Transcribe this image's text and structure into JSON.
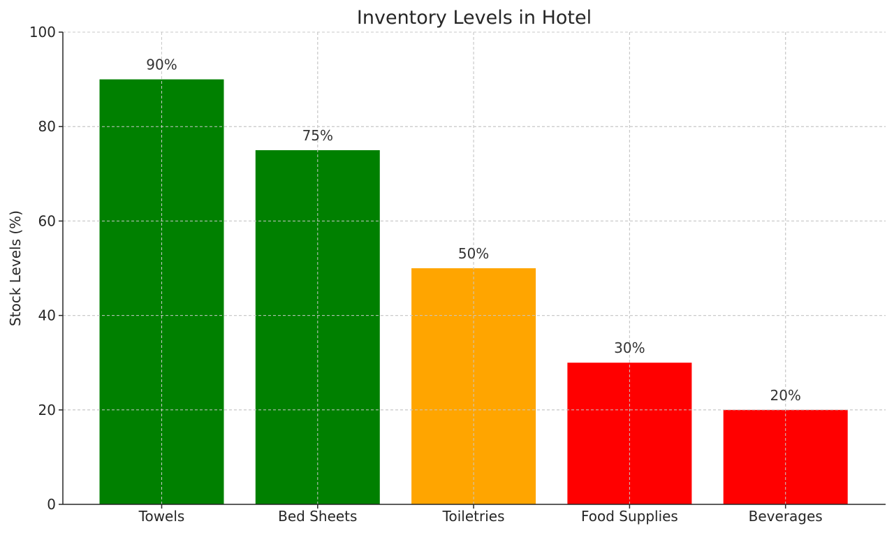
{
  "chart_data": {
    "type": "bar",
    "title": "Inventory Levels in Hotel",
    "xlabel": "",
    "ylabel": "Stock Levels (%)",
    "ylim": [
      0,
      100
    ],
    "yticks": [
      0,
      20,
      40,
      60,
      80,
      100
    ],
    "grid": true,
    "categories": [
      "Towels",
      "Bed Sheets",
      "Toiletries",
      "Food Supplies",
      "Beverages"
    ],
    "values": [
      90,
      75,
      50,
      30,
      20
    ],
    "data_labels": [
      "90%",
      "75%",
      "50%",
      "30%",
      "20%"
    ],
    "colors": [
      "#008000",
      "#008000",
      "#FFA500",
      "#FF0000",
      "#FF0000"
    ]
  }
}
